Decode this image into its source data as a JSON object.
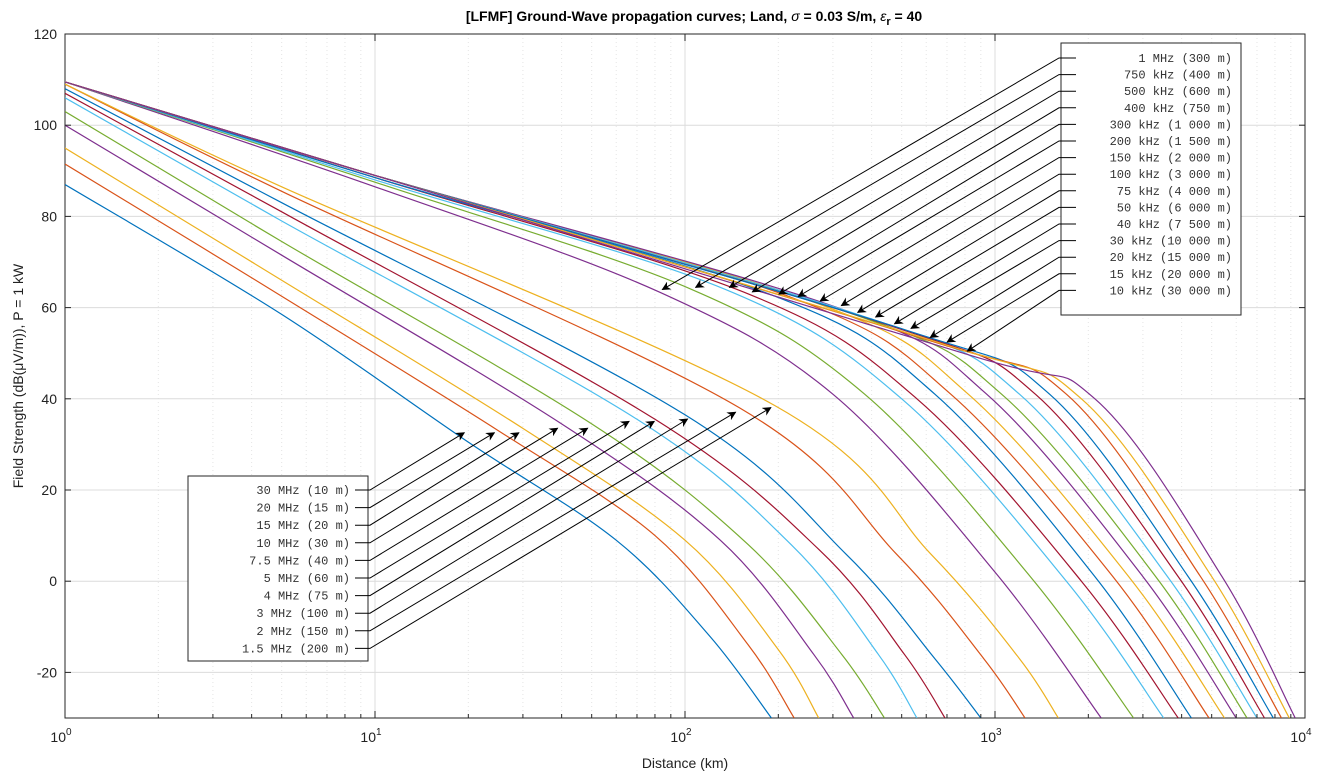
{
  "chart_data": {
    "type": "line",
    "title": "[LFMF] Ground-Wave propagation curves; Land, σ = 0.03 S/m, εr = 40",
    "title_parts": {
      "prefix": "[LFMF] Ground-Wave propagation curves; Land, ",
      "sigma_symbol": "σ",
      "sigma_text": " = 0.03 S/m, ",
      "eps_symbol": "ε",
      "eps_sub": "r",
      "eps_text": " = 40"
    },
    "xlabel": "Distance (km)",
    "ylabel": "Field Strength (dB(μV/m)), P = 1 kW",
    "x_scale": "log",
    "xlim": [
      1,
      10000
    ],
    "ylim": [
      -30,
      120
    ],
    "grid": true,
    "x_ticks": [
      {
        "value": 1,
        "base": "10",
        "exp": "0"
      },
      {
        "value": 10,
        "base": "10",
        "exp": "1"
      },
      {
        "value": 100,
        "base": "10",
        "exp": "2"
      },
      {
        "value": 1000,
        "base": "10",
        "exp": "3"
      },
      {
        "value": 10000,
        "base": "10",
        "exp": "4"
      }
    ],
    "y_ticks": [
      "120",
      "100",
      "80",
      "60",
      "40",
      "20",
      "0",
      "-20"
    ],
    "y_tick_values": [
      120,
      100,
      80,
      60,
      40,
      20,
      0,
      -20
    ],
    "colors": [
      "#0072bd",
      "#d95319",
      "#edb120",
      "#7e2f8e",
      "#77ac30",
      "#4dbeee",
      "#a2142f"
    ],
    "series": [
      {
        "name": "30 MHz (10 m)",
        "color": "#0072bd",
        "x": [
          1,
          5,
          20,
          60,
          120,
          190
        ],
        "y": [
          87,
          58.5,
          30.5,
          9,
          -12,
          -30
        ]
      },
      {
        "name": "20 MHz (15 m)",
        "color": "#d95319",
        "x": [
          1,
          5,
          25,
          80,
          160,
          225
        ],
        "y": [
          91.5,
          62.5,
          33,
          10,
          -14,
          -30
        ]
      },
      {
        "name": "15 MHz (20 m)",
        "color": "#edb120",
        "x": [
          1,
          5,
          30,
          100,
          200,
          270
        ],
        "y": [
          95,
          66,
          33.5,
          9,
          -15,
          -30
        ]
      },
      {
        "name": "10 MHz (30 m)",
        "color": "#7e2f8e",
        "x": [
          1,
          5,
          40,
          130,
          260,
          350
        ],
        "y": [
          100,
          71.5,
          34.5,
          9,
          -16,
          -30
        ]
      },
      {
        "name": "7.5 MHz (40 m)",
        "color": "#77ac30",
        "x": [
          1,
          5,
          50,
          160,
          320,
          440
        ],
        "y": [
          103,
          74.5,
          34.5,
          8,
          -16,
          -30
        ]
      },
      {
        "name": "5 MHz (60 m)",
        "color": "#4dbeee",
        "x": [
          1,
          5,
          70,
          220,
          420,
          560
        ],
        "y": [
          106,
          79,
          35.5,
          8,
          -16,
          -30
        ]
      },
      {
        "name": "4 MHz (75 m)",
        "color": "#a2142f",
        "x": [
          1,
          5,
          80,
          270,
          510,
          690
        ],
        "y": [
          107,
          81,
          35.5,
          7,
          -16,
          -30
        ]
      },
      {
        "name": "3 MHz (100 m)",
        "color": "#0072bd",
        "x": [
          1,
          5,
          100,
          330,
          640,
          900
        ],
        "y": [
          108,
          83,
          36.5,
          6,
          -17,
          -30
        ]
      },
      {
        "name": "2 MHz (150 m)",
        "color": "#d95319",
        "x": [
          1,
          5,
          150,
          480,
          920,
          1250
        ],
        "y": [
          109,
          85.5,
          38,
          6,
          -17,
          -30
        ]
      },
      {
        "name": "1.5 MHz (200 m)",
        "color": "#edb120",
        "x": [
          1,
          5,
          195,
          620,
          1200,
          1600
        ],
        "y": [
          109,
          86.5,
          38.5,
          6,
          -17,
          -30
        ]
      },
      {
        "name": "1 MHz (300 m)",
        "color": "#7e2f8e",
        "x": [
          1,
          10,
          82,
          300,
          1000,
          2200
        ],
        "y": [
          109.5,
          86.5,
          63.5,
          41,
          2,
          -30
        ]
      },
      {
        "name": "750 kHz (400 m)",
        "color": "#77ac30",
        "x": [
          1,
          10,
          105,
          380,
          1300,
          2800
        ],
        "y": [
          109.5,
          87.5,
          64,
          41,
          1,
          -30
        ]
      },
      {
        "name": "500 kHz (600 m)",
        "color": "#4dbeee",
        "x": [
          1,
          10,
          135,
          500,
          1700,
          3500
        ],
        "y": [
          109.5,
          88,
          64,
          40,
          0,
          -30
        ]
      },
      {
        "name": "400 kHz (750 m)",
        "color": "#a2142f",
        "x": [
          1,
          10,
          160,
          560,
          1900,
          3900
        ],
        "y": [
          109.5,
          88.5,
          63,
          40,
          0,
          -30
        ]
      },
      {
        "name": "300 kHz (1 000 m)",
        "color": "#0072bd",
        "x": [
          1,
          10,
          195,
          640,
          2100,
          4300
        ],
        "y": [
          109.5,
          88.5,
          62.5,
          41,
          1,
          -30
        ]
      },
      {
        "name": "200 kHz (1 500 m)",
        "color": "#d95319",
        "x": [
          1,
          10,
          225,
          720,
          2400,
          4900
        ],
        "y": [
          109.5,
          89,
          62,
          41,
          1,
          -30
        ]
      },
      {
        "name": "150 kHz (2 000 m)",
        "color": "#edb120",
        "x": [
          1,
          10,
          265,
          820,
          2700,
          5500
        ],
        "y": [
          109.5,
          89,
          61,
          41,
          1,
          -30
        ]
      },
      {
        "name": "100 kHz (3 000 m)",
        "color": "#7e2f8e",
        "x": [
          1,
          10,
          310,
          940,
          3000,
          6000
        ],
        "y": [
          109.5,
          89,
          60,
          41,
          1,
          -30
        ]
      },
      {
        "name": "75 kHz (4 000 m)",
        "color": "#77ac30",
        "x": [
          1,
          10,
          350,
          1050,
          3300,
          6500
        ],
        "y": [
          109.5,
          89,
          58.5,
          41,
          1,
          -30
        ]
      },
      {
        "name": "50 kHz (6 000 m)",
        "color": "#4dbeee",
        "x": [
          1,
          10,
          400,
          1200,
          3600,
          7000
        ],
        "y": [
          109.5,
          89,
          57.5,
          41,
          1,
          -30
        ]
      },
      {
        "name": "40 kHz (7 500 m)",
        "color": "#a2142f",
        "x": [
          1,
          10,
          460,
          1350,
          3900,
          7400
        ],
        "y": [
          109.5,
          89,
          56,
          41,
          1,
          -30
        ]
      },
      {
        "name": "30 kHz (10 000 m)",
        "color": "#0072bd",
        "x": [
          1,
          10,
          520,
          1500,
          4200,
          7900
        ],
        "y": [
          109.5,
          89,
          55,
          41,
          1,
          -30
        ]
      },
      {
        "name": "20 kHz (15 000 m)",
        "color": "#d95319",
        "x": [
          1,
          10,
          600,
          1700,
          4600,
          8400
        ],
        "y": [
          109.5,
          89,
          53,
          41,
          1,
          -30
        ]
      },
      {
        "name": "15 kHz (20 000 m)",
        "color": "#edb120",
        "x": [
          1,
          10,
          680,
          1900,
          5000,
          8900
        ],
        "y": [
          109.5,
          89,
          52,
          40,
          1,
          -30
        ]
      },
      {
        "name": "10 kHz (30 000 m)",
        "color": "#7e2f8e",
        "x": [
          1,
          10,
          790,
          2100,
          5400,
          9300
        ],
        "y": [
          109.5,
          89,
          50,
          40,
          1,
          -30
        ]
      }
    ],
    "legend_upper": {
      "placement": "top-right",
      "entries": [
        {
          "label": "  1 MHz    (300 m)",
          "target": [
            82,
            63.5
          ]
        },
        {
          "label": "750 kHz    (400 m)",
          "target": [
            105,
            64
          ]
        },
        {
          "label": "500 kHz    (600 m)",
          "target": [
            135,
            64
          ]
        },
        {
          "label": "400 kHz    (750 m)",
          "target": [
            160,
            63
          ]
        },
        {
          "label": "300 kHz  (1 000 m)",
          "target": [
            195,
            62.5
          ]
        },
        {
          "label": "200 kHz  (1 500 m)",
          "target": [
            225,
            62
          ]
        },
        {
          "label": "150 kHz  (2 000 m)",
          "target": [
            265,
            61
          ]
        },
        {
          "label": "100 kHz  (3 000 m)",
          "target": [
            310,
            60
          ]
        },
        {
          "label": " 75 kHz  (4 000 m)",
          "target": [
            350,
            58.5
          ]
        },
        {
          "label": " 50 kHz  (6 000 m)",
          "target": [
            400,
            57.5
          ]
        },
        {
          "label": " 40 kHz  (7 500 m)",
          "target": [
            460,
            56
          ]
        },
        {
          "label": " 30 kHz (10 000 m)",
          "target": [
            520,
            55
          ]
        },
        {
          "label": " 20 kHz (15 000 m)",
          "target": [
            600,
            53
          ]
        },
        {
          "label": " 15 kHz (20 000 m)",
          "target": [
            680,
            52
          ]
        },
        {
          "label": " 10 kHz (30 000 m)",
          "target": [
            790,
            50
          ]
        }
      ]
    },
    "legend_lower": {
      "placement": "bottom-left",
      "entries": [
        {
          "label": "30   MHz  (10 m)",
          "target": [
            20,
            33
          ]
        },
        {
          "label": "20   MHz  (15 m)",
          "target": [
            25,
            33
          ]
        },
        {
          "label": "15   MHz  (20 m)",
          "target": [
            30,
            33
          ]
        },
        {
          "label": "10   MHz  (30 m)",
          "target": [
            40,
            34
          ]
        },
        {
          "label": " 7.5 MHz  (40 m)",
          "target": [
            50,
            34
          ]
        },
        {
          "label": "5    MHz  (60 m)",
          "target": [
            68,
            35.5
          ]
        },
        {
          "label": "4    MHz  (75 m)",
          "target": [
            82,
            35.5
          ]
        },
        {
          "label": "3    MHz (100 m)",
          "target": [
            105,
            36
          ]
        },
        {
          "label": "2    MHz (150 m)",
          "target": [
            150,
            37.5
          ]
        },
        {
          "label": "1.5 MHz (200 m)",
          "target": [
            195,
            38.5
          ]
        }
      ]
    }
  }
}
